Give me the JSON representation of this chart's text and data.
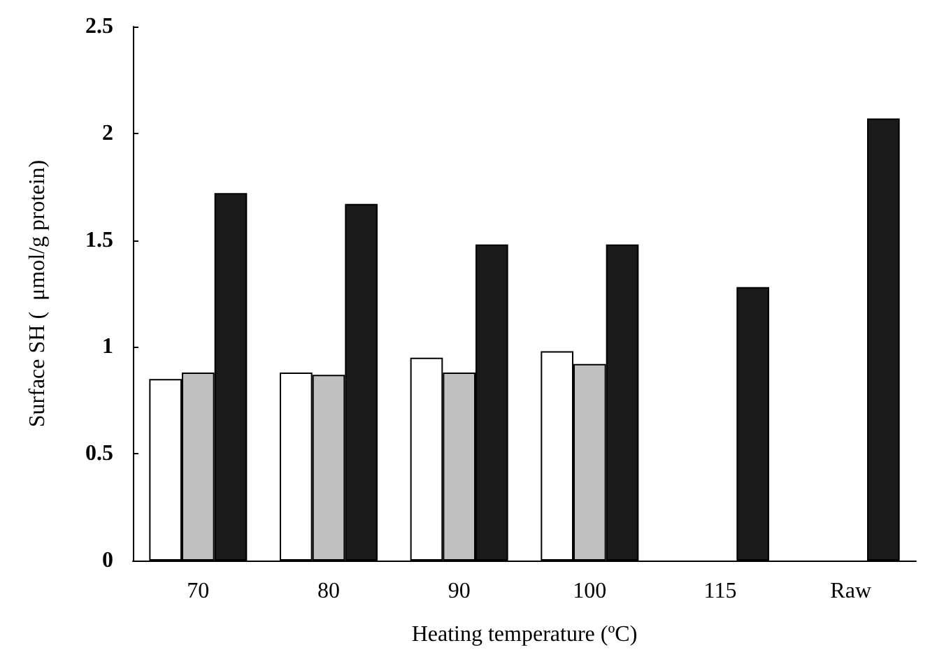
{
  "chart_data": {
    "type": "bar",
    "xlabel": "Heating temperature (ºC)",
    "ylabel": "Surface SH (  μmol/g protein)",
    "categories": [
      "70",
      "80",
      "90",
      "100",
      "115",
      "Raw"
    ],
    "series": [
      {
        "color": "#ffffff",
        "values": [
          0.85,
          0.88,
          0.95,
          0.98,
          null,
          null
        ]
      },
      {
        "color": "#c0c0c0",
        "values": [
          0.88,
          0.87,
          0.88,
          0.92,
          null,
          null
        ]
      },
      {
        "color": "#1a1a1a",
        "values": [
          1.72,
          1.67,
          1.48,
          1.48,
          1.28,
          2.07
        ]
      }
    ],
    "ylim": [
      0,
      2.5
    ],
    "yticks": [
      0,
      0.5,
      1,
      1.5,
      2,
      2.5
    ],
    "grid": false
  }
}
